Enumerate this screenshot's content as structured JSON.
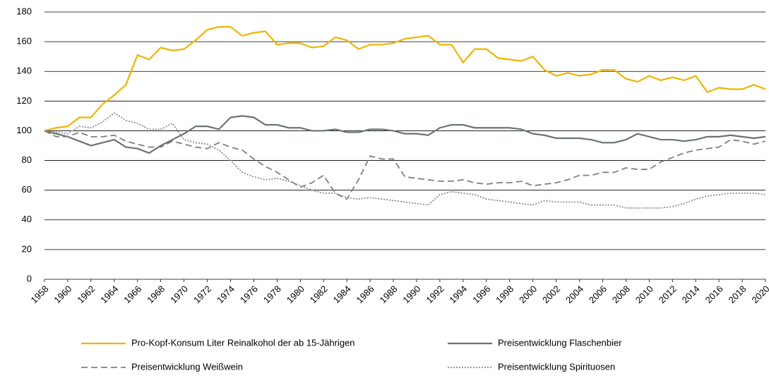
{
  "chart_data": {
    "type": "line",
    "x": [
      1958,
      1959,
      1960,
      1961,
      1962,
      1963,
      1964,
      1965,
      1966,
      1967,
      1968,
      1969,
      1970,
      1971,
      1972,
      1973,
      1974,
      1975,
      1976,
      1977,
      1978,
      1979,
      1980,
      1981,
      1982,
      1983,
      1984,
      1985,
      1986,
      1987,
      1988,
      1989,
      1990,
      1991,
      1992,
      1993,
      1994,
      1995,
      1996,
      1997,
      1998,
      1999,
      2000,
      2001,
      2002,
      2003,
      2004,
      2005,
      2006,
      2007,
      2008,
      2009,
      2010,
      2011,
      2012,
      2013,
      2014,
      2015,
      2016,
      2017,
      2018,
      2019,
      2020
    ],
    "xlim": [
      1958,
      2020
    ],
    "xticks": [
      1958,
      1960,
      1962,
      1964,
      1966,
      1968,
      1970,
      1972,
      1974,
      1976,
      1978,
      1980,
      1982,
      1984,
      1986,
      1988,
      1990,
      1992,
      1994,
      1996,
      1998,
      2000,
      2002,
      2004,
      2006,
      2008,
      2010,
      2012,
      2014,
      2016,
      2018,
      2020
    ],
    "ylim": [
      0,
      180
    ],
    "yticks": [
      0,
      20,
      40,
      60,
      80,
      100,
      120,
      140,
      160,
      180
    ],
    "grid": true,
    "legend": "bottom",
    "series": [
      {
        "name": "Pro-Kopf-Konsum Liter Reinalkohol der ab 15-Jährigen",
        "color": "#f0b400",
        "dash": "solid",
        "values": [
          100,
          102,
          103,
          109,
          109,
          118,
          124,
          131,
          151,
          148,
          156,
          154,
          155,
          161,
          168,
          170,
          170,
          164,
          166,
          167,
          158,
          159,
          159,
          156,
          157,
          163,
          161,
          155,
          158,
          158,
          159,
          162,
          163,
          164,
          158,
          158,
          146,
          155,
          155,
          149,
          148,
          147,
          150,
          141,
          137,
          139,
          137,
          138,
          141,
          141,
          135,
          133,
          137,
          134,
          136,
          134,
          137,
          126,
          129,
          128,
          128,
          131,
          128
        ]
      },
      {
        "name": "Preisentwicklung Flaschenbier",
        "color": "#6b7371",
        "dash": "solid",
        "values": [
          100,
          98,
          96,
          93,
          90,
          92,
          94,
          89,
          88,
          85,
          90,
          94,
          98,
          103,
          103,
          101,
          109,
          110,
          109,
          104,
          104,
          102,
          102,
          100,
          100,
          101,
          99,
          99,
          101,
          101,
          100,
          98,
          98,
          97,
          102,
          104,
          104,
          102,
          102,
          102,
          102,
          101,
          98,
          97,
          95,
          95,
          95,
          94,
          92,
          92,
          94,
          98,
          96,
          94,
          94,
          93,
          94,
          96,
          96,
          97,
          96,
          95,
          96
        ]
      },
      {
        "name": "Preisentwicklung Weißwein",
        "color": "#808080",
        "dash": "dashed",
        "values": [
          100,
          96,
          96,
          99,
          96,
          96,
          97,
          93,
          91,
          89,
          89,
          93,
          91,
          89,
          88,
          92,
          89,
          87,
          81,
          76,
          72,
          67,
          62,
          65,
          70,
          58,
          54,
          67,
          83,
          81,
          81,
          69,
          68,
          67,
          66,
          66,
          67,
          65,
          64,
          65,
          65,
          66,
          63,
          64,
          65,
          67,
          70,
          70,
          72,
          72,
          75,
          74,
          74,
          79,
          82,
          85,
          87,
          88,
          89,
          94,
          93,
          91,
          93
        ]
      },
      {
        "name": "Preisentwicklung Spirituosen",
        "color": "#8c8c8c",
        "dash": "dotted",
        "values": [
          100,
          99,
          98,
          103,
          102,
          106,
          112,
          107,
          105,
          101,
          101,
          105,
          94,
          92,
          91,
          87,
          80,
          72,
          69,
          67,
          68,
          66,
          63,
          60,
          58,
          58,
          55,
          54,
          55,
          54,
          53,
          52,
          51,
          50,
          57,
          59,
          58,
          57,
          54,
          53,
          52,
          51,
          50,
          53,
          52,
          52,
          52,
          50,
          50,
          50,
          48,
          48,
          48,
          48,
          49,
          51,
          54,
          56,
          57,
          58,
          58,
          58,
          57
        ]
      }
    ]
  }
}
